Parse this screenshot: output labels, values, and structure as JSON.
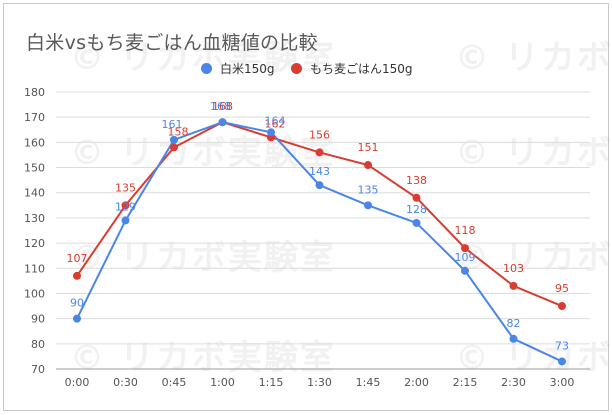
{
  "chart_data": {
    "type": "line",
    "title": "白米vsもち麦ごはん血糖値の比較",
    "categories": [
      "0:00",
      "0:30",
      "0:45",
      "1:00",
      "1:15",
      "1:30",
      "1:45",
      "2:00",
      "2:15",
      "2:30",
      "3:00"
    ],
    "series": [
      {
        "name": "白米150g",
        "color": "#4a86e8",
        "values": [
          90,
          129,
          161,
          168,
          164,
          143,
          135,
          128,
          109,
          82,
          73
        ]
      },
      {
        "name": "もち麦ごはん150g",
        "color": "#d93c30",
        "values": [
          107,
          135,
          158,
          168,
          162,
          156,
          151,
          138,
          118,
          103,
          95
        ]
      }
    ],
    "y_ticks": [
      70,
      80,
      90,
      100,
      110,
      120,
      130,
      140,
      150,
      160,
      170,
      180
    ],
    "ylim": [
      70,
      180
    ],
    "grid": true,
    "legend_position": "top-right",
    "watermark": "© リカボ実験室"
  }
}
